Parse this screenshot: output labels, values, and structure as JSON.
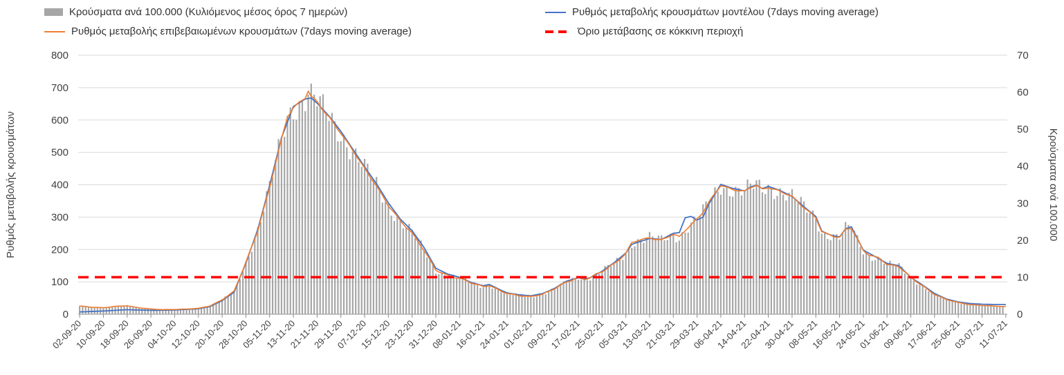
{
  "chart_data": {
    "type": "bar+line",
    "title": "",
    "total_days": 313,
    "x_tick_interval_days": 8,
    "x_tick_labels": [
      "02-09-20",
      "10-09-20",
      "18-09-20",
      "26-09-20",
      "04-10-20",
      "12-10-20",
      "20-10-20",
      "28-10-20",
      "05-11-20",
      "13-11-20",
      "21-11-20",
      "29-11-20",
      "07-12-20",
      "15-12-20",
      "23-12-20",
      "31-12-20",
      "08-01-21",
      "16-01-21",
      "24-01-21",
      "01-02-21",
      "09-02-21",
      "17-02-21",
      "25-02-21",
      "05-03-21",
      "13-03-21",
      "21-03-21",
      "29-03-21",
      "06-04-21",
      "14-04-21",
      "22-04-21",
      "30-04-21",
      "08-05-21",
      "16-05-21",
      "24-05-21",
      "01-06-21",
      "09-06-21",
      "17-06-21",
      "25-06-21",
      "03-07-21",
      "11-07-21"
    ],
    "left_axis": {
      "label": "Ρυθμός μεταβολής κρουσμάτων",
      "min": 0,
      "max": 800,
      "step": 100
    },
    "right_axis": {
      "label": "Κρούσματα ανά 100.000",
      "min": 0,
      "max": 70,
      "step": 10
    },
    "grid_color": "#d9d9d9",
    "axis_line_color": "#8c8c8c",
    "text_color": "#404040",
    "bars": {
      "name": "Κρούσματα ανά 100.000 (Κυλιόμενος μέσος όρος 7 ημερών)",
      "axis": "right",
      "color": "#a6a6a6",
      "points": [
        [
          0,
          2.2
        ],
        [
          4,
          1.9
        ],
        [
          8,
          1.8
        ],
        [
          12,
          2.1
        ],
        [
          16,
          2.3
        ],
        [
          20,
          1.8
        ],
        [
          24,
          1.4
        ],
        [
          28,
          1.2
        ],
        [
          32,
          1.3
        ],
        [
          36,
          1.4
        ],
        [
          40,
          1.6
        ],
        [
          44,
          2.3
        ],
        [
          48,
          3.9
        ],
        [
          52,
          6.1
        ],
        [
          56,
          14
        ],
        [
          60,
          22.8
        ],
        [
          64,
          34.1
        ],
        [
          68,
          47.3
        ],
        [
          70,
          53.4
        ],
        [
          72,
          56
        ],
        [
          74,
          57.3
        ],
        [
          76,
          58.5
        ],
        [
          77,
          60.4
        ],
        [
          78,
          58.8
        ],
        [
          80,
          57.3
        ],
        [
          82,
          55.1
        ],
        [
          84,
          53.4
        ],
        [
          86,
          51.2
        ],
        [
          88,
          49
        ],
        [
          92,
          44.2
        ],
        [
          96,
          39.4
        ],
        [
          100,
          34.8
        ],
        [
          104,
          29.3
        ],
        [
          108,
          25.2
        ],
        [
          112,
          22.1
        ],
        [
          116,
          17.3
        ],
        [
          120,
          11.8
        ],
        [
          124,
          10.5
        ],
        [
          128,
          9.8
        ],
        [
          132,
          8.4
        ],
        [
          136,
          7.4
        ],
        [
          138,
          7.9
        ],
        [
          142,
          6.3
        ],
        [
          144,
          5.6
        ],
        [
          148,
          5
        ],
        [
          152,
          4.8
        ],
        [
          156,
          5.4
        ],
        [
          160,
          6.8
        ],
        [
          164,
          8.8
        ],
        [
          168,
          10.1
        ],
        [
          170,
          9.4
        ],
        [
          172,
          9.8
        ],
        [
          176,
          11.6
        ],
        [
          180,
          13.7
        ],
        [
          184,
          16.3
        ],
        [
          186,
          19.3
        ],
        [
          188,
          19.9
        ],
        [
          192,
          20.7
        ],
        [
          196,
          20
        ],
        [
          200,
          21.5
        ],
        [
          202,
          20.8
        ],
        [
          204,
          22.8
        ],
        [
          208,
          25.8
        ],
        [
          210,
          27.6
        ],
        [
          212,
          30.2
        ],
        [
          214,
          32.6
        ],
        [
          216,
          34.8
        ],
        [
          218,
          34.3
        ],
        [
          220,
          33.9
        ],
        [
          222,
          33.4
        ],
        [
          224,
          33.2
        ],
        [
          226,
          34.2
        ],
        [
          228,
          34.7
        ],
        [
          230,
          33.8
        ],
        [
          232,
          34.4
        ],
        [
          236,
          33.3
        ],
        [
          240,
          31.7
        ],
        [
          244,
          28.9
        ],
        [
          248,
          26.3
        ],
        [
          250,
          22.3
        ],
        [
          252,
          21.5
        ],
        [
          254,
          21
        ],
        [
          256,
          20.7
        ],
        [
          258,
          23
        ],
        [
          260,
          23.5
        ],
        [
          262,
          20.3
        ],
        [
          264,
          17.2
        ],
        [
          266,
          15.9
        ],
        [
          268,
          15.4
        ],
        [
          270,
          14.9
        ],
        [
          272,
          13.6
        ],
        [
          276,
          13
        ],
        [
          280,
          9.8
        ],
        [
          284,
          7.7
        ],
        [
          288,
          5.4
        ],
        [
          292,
          3.9
        ],
        [
          296,
          3.2
        ],
        [
          300,
          2.6
        ],
        [
          304,
          2.4
        ],
        [
          308,
          2.2
        ],
        [
          311,
          2.1
        ]
      ]
    },
    "lines": [
      {
        "name": "Ρυθμός μεταβολής κρουσμάτων μοντέλου (7days moving average)",
        "axis": "left",
        "color": "#4472c4",
        "points": [
          [
            0,
            7
          ],
          [
            8,
            10
          ],
          [
            16,
            14
          ],
          [
            24,
            12
          ],
          [
            32,
            13
          ],
          [
            40,
            17
          ],
          [
            44,
            24
          ],
          [
            48,
            42
          ],
          [
            52,
            68
          ],
          [
            56,
            158
          ],
          [
            60,
            262
          ],
          [
            64,
            398
          ],
          [
            68,
            545
          ],
          [
            72,
            642
          ],
          [
            76,
            665
          ],
          [
            78,
            668
          ],
          [
            80,
            652
          ],
          [
            84,
            612
          ],
          [
            88,
            565
          ],
          [
            92,
            510
          ],
          [
            96,
            455
          ],
          [
            100,
            403
          ],
          [
            104,
            344
          ],
          [
            108,
            294
          ],
          [
            112,
            258
          ],
          [
            116,
            206
          ],
          [
            120,
            142
          ],
          [
            124,
            124
          ],
          [
            128,
            114
          ],
          [
            132,
            98
          ],
          [
            136,
            88
          ],
          [
            138,
            92
          ],
          [
            142,
            74
          ],
          [
            144,
            66
          ],
          [
            148,
            60
          ],
          [
            152,
            57
          ],
          [
            156,
            64
          ],
          [
            160,
            80
          ],
          [
            164,
            102
          ],
          [
            168,
            113
          ],
          [
            170,
            109
          ],
          [
            172,
            113
          ],
          [
            176,
            133
          ],
          [
            180,
            159
          ],
          [
            184,
            189
          ],
          [
            186,
            216
          ],
          [
            192,
            234
          ],
          [
            196,
            231
          ],
          [
            200,
            250
          ],
          [
            202,
            252
          ],
          [
            204,
            298
          ],
          [
            206,
            302
          ],
          [
            208,
            291
          ],
          [
            210,
            300
          ],
          [
            212,
            341
          ],
          [
            214,
            371
          ],
          [
            216,
            401
          ],
          [
            220,
            389
          ],
          [
            224,
            381
          ],
          [
            226,
            393
          ],
          [
            228,
            399
          ],
          [
            230,
            388
          ],
          [
            232,
            395
          ],
          [
            236,
            382
          ],
          [
            240,
            364
          ],
          [
            244,
            332
          ],
          [
            248,
            302
          ],
          [
            250,
            257
          ],
          [
            252,
            248
          ],
          [
            254,
            242
          ],
          [
            256,
            239
          ],
          [
            258,
            264
          ],
          [
            260,
            270
          ],
          [
            262,
            234
          ],
          [
            264,
            198
          ],
          [
            268,
            178
          ],
          [
            272,
            157
          ],
          [
            276,
            150
          ],
          [
            280,
            114
          ],
          [
            284,
            90
          ],
          [
            288,
            64
          ],
          [
            292,
            47
          ],
          [
            296,
            38
          ],
          [
            300,
            33
          ],
          [
            304,
            31
          ],
          [
            308,
            30
          ],
          [
            312,
            30
          ]
        ]
      },
      {
        "name": "Ρυθμός μεταβολής επιβεβαιωμένων κρουσμάτων (7days moving average)",
        "axis": "left",
        "color": "#ed7d31",
        "points": [
          [
            0,
            25
          ],
          [
            4,
            22
          ],
          [
            8,
            20
          ],
          [
            12,
            24
          ],
          [
            16,
            26
          ],
          [
            20,
            20
          ],
          [
            24,
            16
          ],
          [
            28,
            14
          ],
          [
            32,
            15
          ],
          [
            36,
            16
          ],
          [
            40,
            18
          ],
          [
            44,
            26
          ],
          [
            48,
            45
          ],
          [
            52,
            70
          ],
          [
            56,
            160
          ],
          [
            60,
            260
          ],
          [
            64,
            390
          ],
          [
            68,
            540
          ],
          [
            70,
            610
          ],
          [
            72,
            640
          ],
          [
            74,
            655
          ],
          [
            76,
            668
          ],
          [
            77,
            690
          ],
          [
            78,
            672
          ],
          [
            80,
            655
          ],
          [
            82,
            630
          ],
          [
            84,
            610
          ],
          [
            86,
            585
          ],
          [
            88,
            560
          ],
          [
            92,
            505
          ],
          [
            96,
            450
          ],
          [
            100,
            398
          ],
          [
            104,
            335
          ],
          [
            108,
            288
          ],
          [
            112,
            252
          ],
          [
            116,
            198
          ],
          [
            120,
            135
          ],
          [
            124,
            120
          ],
          [
            128,
            112
          ],
          [
            132,
            96
          ],
          [
            136,
            85
          ],
          [
            138,
            90
          ],
          [
            142,
            72
          ],
          [
            144,
            64
          ],
          [
            148,
            57
          ],
          [
            152,
            55
          ],
          [
            156,
            62
          ],
          [
            160,
            78
          ],
          [
            164,
            100
          ],
          [
            168,
            115
          ],
          [
            170,
            107
          ],
          [
            172,
            112
          ],
          [
            176,
            132
          ],
          [
            180,
            157
          ],
          [
            184,
            186
          ],
          [
            186,
            220
          ],
          [
            188,
            227
          ],
          [
            192,
            237
          ],
          [
            196,
            229
          ],
          [
            200,
            246
          ],
          [
            202,
            238
          ],
          [
            204,
            260
          ],
          [
            208,
            295
          ],
          [
            210,
            315
          ],
          [
            212,
            345
          ],
          [
            214,
            372
          ],
          [
            216,
            398
          ],
          [
            218,
            392
          ],
          [
            220,
            387
          ],
          [
            222,
            382
          ],
          [
            224,
            379
          ],
          [
            226,
            391
          ],
          [
            228,
            397
          ],
          [
            230,
            386
          ],
          [
            232,
            393
          ],
          [
            236,
            380
          ],
          [
            240,
            362
          ],
          [
            244,
            330
          ],
          [
            248,
            300
          ],
          [
            250,
            255
          ],
          [
            252,
            246
          ],
          [
            254,
            240
          ],
          [
            256,
            237
          ],
          [
            258,
            263
          ],
          [
            260,
            268
          ],
          [
            262,
            232
          ],
          [
            264,
            196
          ],
          [
            266,
            182
          ],
          [
            268,
            176
          ],
          [
            270,
            170
          ],
          [
            272,
            155
          ],
          [
            276,
            148
          ],
          [
            280,
            112
          ],
          [
            284,
            88
          ],
          [
            288,
            62
          ],
          [
            292,
            45
          ],
          [
            296,
            36
          ],
          [
            300,
            30
          ],
          [
            304,
            27
          ],
          [
            308,
            25
          ],
          [
            312,
            24
          ]
        ]
      }
    ],
    "threshold": {
      "name": "Όριο μετάβασης σε κόκκινη περιοχή",
      "axis": "right",
      "value": 10,
      "color": "#ff0000"
    }
  }
}
